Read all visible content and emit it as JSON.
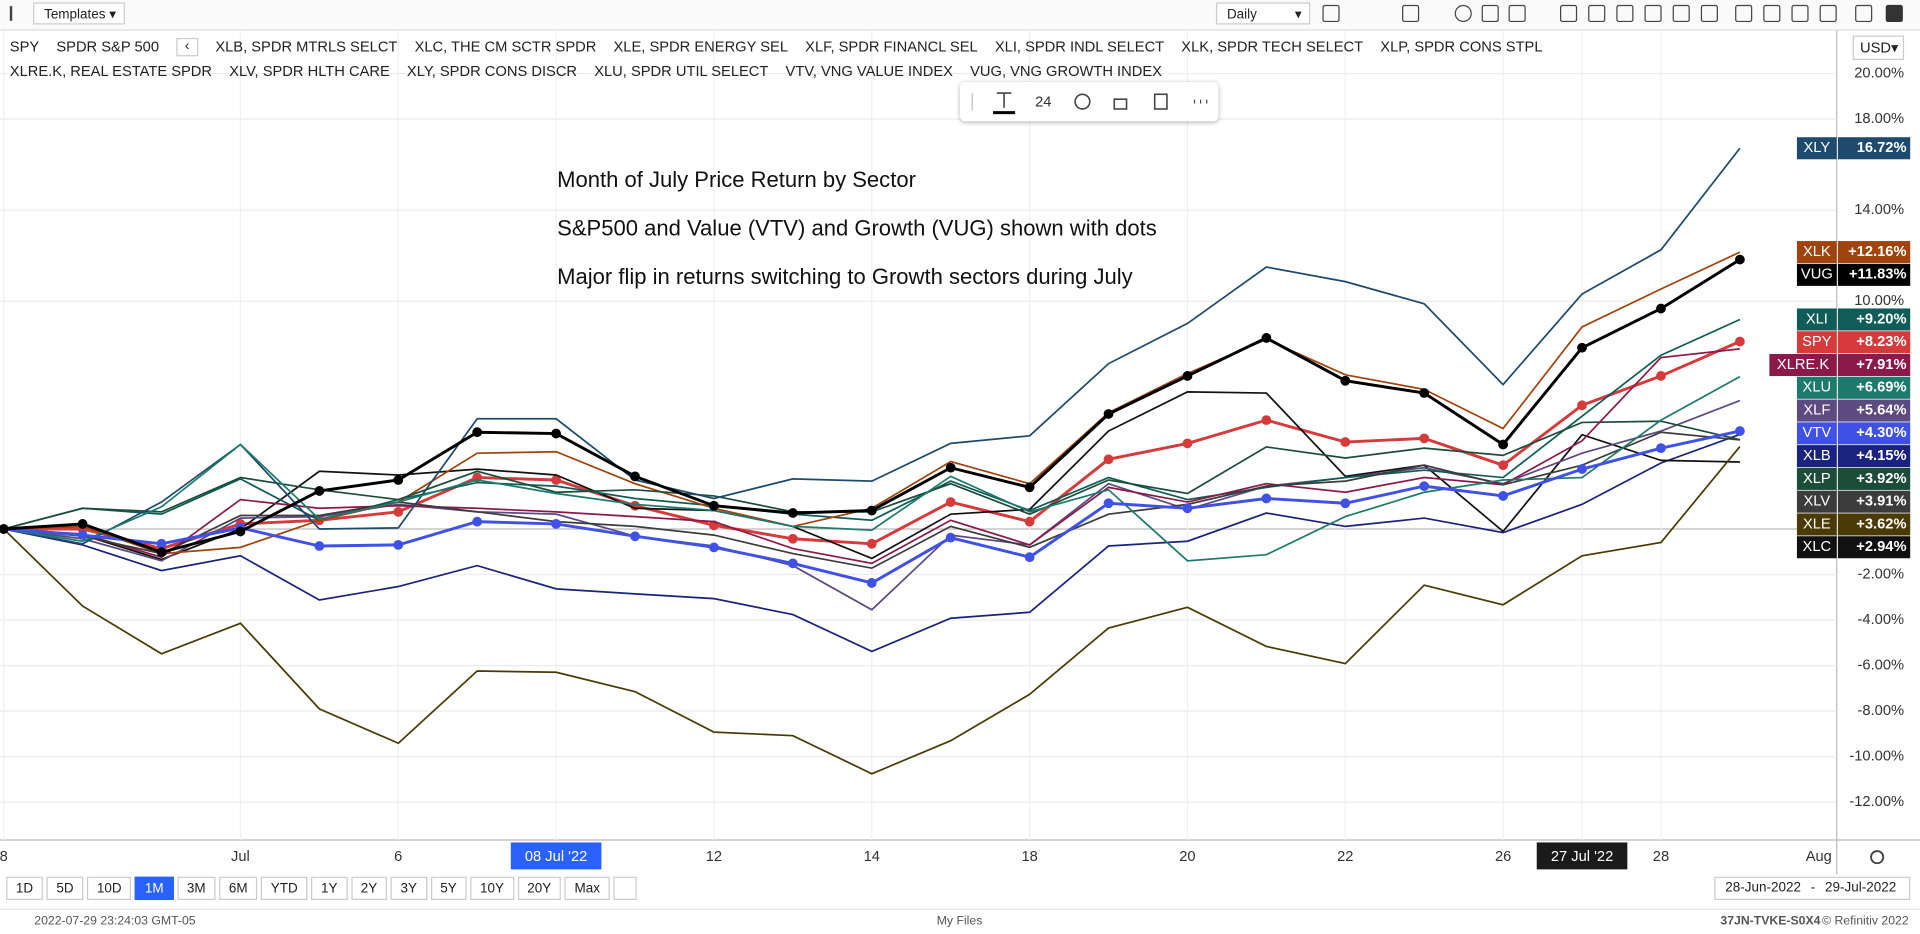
{
  "toolbar": {
    "templates": "Templates",
    "interval": "Daily",
    "currency": "USD"
  },
  "chart_data": {
    "type": "line",
    "categories": [
      "8",
      null,
      null,
      "Jul",
      null,
      "6",
      null,
      "08 Jul '22",
      null,
      "12",
      null,
      "14",
      null,
      "18",
      null,
      "20",
      null,
      "22",
      null,
      "26",
      "27 Jul '22",
      "28",
      null
    ],
    "x_end_label": "Aug",
    "x_highlight": [
      7,
      20
    ],
    "ylim": [
      -13.66,
      21.94
    ],
    "yticks": [
      {
        "value": 20,
        "label": "20.00%"
      },
      {
        "value": 18,
        "label": "18.00%"
      },
      {
        "value": 14,
        "label": "14.00%"
      },
      {
        "value": 10,
        "label": "10.00%"
      },
      {
        "value": -2,
        "label": "-2.00%"
      },
      {
        "value": -4,
        "label": "-4.00%"
      },
      {
        "value": -6,
        "label": "-6.00%"
      },
      {
        "value": -8,
        "label": "-8.00%"
      },
      {
        "value": -10,
        "label": "-10.00%"
      },
      {
        "value": -12,
        "label": "-12.00%"
      }
    ],
    "grid": true,
    "annotations": [
      "Month of July Price Return by Sector",
      "S&P500 and Value (VTV) and Growth (VUG) shown with dots",
      "Major flip in returns switching to Growth sectors during July"
    ],
    "series": [
      {
        "symbol": "SPY",
        "name": "SPDR S&P 500",
        "color": "#d63a3a",
        "markers": true,
        "values": [
          0,
          0,
          -0.86,
          0.22,
          0.38,
          0.75,
          2.26,
          2.15,
          1.02,
          0.16,
          -0.43,
          -0.65,
          1.18,
          0.32,
          3.06,
          3.76,
          4.78,
          3.82,
          3.98,
          2.8,
          5.43,
          6.72,
          8.23
        ],
        "value_labels": [
          null,
          null,
          null,
          null,
          null,
          null,
          null,
          null,
          null,
          null,
          null,
          null,
          null,
          null,
          null,
          null,
          null,
          null,
          null,
          null,
          null,
          null,
          "+8.23%"
        ]
      },
      {
        "symbol": "XLB",
        "name": "XLB, SPDR MTRLS SELCT",
        "color": "#1a237e",
        "markers": false,
        "values": [
          0,
          -0.7,
          -1.83,
          -1.18,
          -3.12,
          -2.53,
          -1.61,
          -2.63,
          -2.85,
          -3.06,
          -3.76,
          -5.38,
          -3.92,
          -3.66,
          -0.75,
          -0.54,
          0.7,
          0.11,
          0.48,
          -0.16,
          1.08,
          2.9,
          4.15
        ],
        "value_labels": [
          null,
          null,
          null,
          null,
          null,
          null,
          null,
          null,
          null,
          null,
          null,
          null,
          null,
          null,
          null,
          null,
          null,
          null,
          null,
          null,
          null,
          null,
          "+4.15%"
        ]
      },
      {
        "symbol": "XLC",
        "name": "XLC, THE CM SCTR SPDR",
        "color": "#111111",
        "markers": false,
        "values": [
          0,
          -0.27,
          -1.34,
          0,
          2.53,
          2.37,
          2.63,
          2.37,
          0.91,
          0.81,
          0.11,
          -1.29,
          0.65,
          0.86,
          4.3,
          6.02,
          5.97,
          2.31,
          2.8,
          -0.11,
          4.14,
          3.01,
          2.94
        ],
        "value_labels": [
          null,
          null,
          null,
          null,
          null,
          null,
          null,
          null,
          null,
          null,
          null,
          null,
          null,
          null,
          null,
          null,
          null,
          null,
          null,
          null,
          null,
          null,
          "+2.94%"
        ]
      },
      {
        "symbol": "XLE",
        "name": "XLE, SPDR ENERGY SEL",
        "color": "#4a3a05",
        "markers": false,
        "values": [
          0,
          -3.39,
          -5.48,
          -4.14,
          -7.9,
          -9.41,
          -6.24,
          -6.29,
          -7.15,
          -8.92,
          -9.08,
          -10.75,
          -9.3,
          -7.26,
          -4.35,
          -3.44,
          -5.16,
          -5.91,
          -2.47,
          -3.33,
          -1.18,
          -0.59,
          3.62
        ],
        "value_labels": [
          null,
          null,
          null,
          null,
          null,
          null,
          null,
          null,
          null,
          null,
          null,
          null,
          null,
          null,
          null,
          null,
          null,
          null,
          null,
          null,
          null,
          null,
          "+3.62%"
        ]
      },
      {
        "symbol": "XLF",
        "name": "XLF, SPDR FINANCL SEL",
        "color": "#5c4a80",
        "markers": false,
        "values": [
          0,
          -0.43,
          -1.4,
          0.48,
          0.54,
          1.08,
          0.75,
          0.65,
          -0.32,
          -0.75,
          -1.61,
          -3.55,
          -0.27,
          -0.7,
          1.99,
          0.86,
          1.88,
          2.26,
          2.69,
          1.99,
          3.33,
          4.3,
          5.64
        ],
        "value_labels": [
          null,
          null,
          null,
          null,
          null,
          null,
          null,
          null,
          null,
          null,
          null,
          null,
          null,
          null,
          null,
          null,
          null,
          null,
          null,
          null,
          null,
          null,
          "+5.64%"
        ]
      },
      {
        "symbol": "XLI",
        "name": "XLI, SPDR INDL SELECT",
        "color": "#0f5c58",
        "markers": false,
        "values": [
          0,
          0.91,
          0.65,
          2.2,
          0.38,
          1.29,
          2.04,
          1.88,
          1.34,
          1.02,
          0.65,
          0.38,
          2.1,
          0.81,
          2.26,
          1.29,
          1.83,
          2.26,
          2.58,
          2.26,
          4.95,
          7.63,
          9.2
        ],
        "value_labels": [
          null,
          null,
          null,
          null,
          null,
          null,
          null,
          null,
          null,
          null,
          null,
          null,
          null,
          null,
          null,
          null,
          null,
          null,
          null,
          null,
          null,
          null,
          "+9.20%"
        ]
      },
      {
        "symbol": "XLK",
        "name": "XLK, SPDR TECH SELECT",
        "color": "#a0430c",
        "markers": false,
        "values": [
          0,
          0.11,
          -1.08,
          -0.81,
          0.38,
          1.18,
          3.33,
          3.39,
          1.99,
          0.91,
          0.11,
          0.91,
          2.96,
          1.99,
          5.11,
          6.83,
          8.33,
          6.77,
          6.13,
          4.41,
          8.87,
          10.54,
          12.16
        ],
        "value_labels": [
          null,
          null,
          null,
          null,
          null,
          null,
          null,
          null,
          null,
          null,
          null,
          null,
          null,
          null,
          null,
          null,
          null,
          null,
          null,
          null,
          null,
          null,
          "+12.16%"
        ]
      },
      {
        "symbol": "XLP",
        "name": "XLP, SPDR CONS STPL",
        "color": "#1d4d3a",
        "markers": false,
        "values": [
          0,
          0.91,
          0.75,
          2.26,
          1.72,
          1.29,
          2.53,
          1.61,
          1.72,
          1.45,
          0.75,
          0.75,
          1.99,
          0.65,
          2.15,
          1.56,
          3.6,
          3.12,
          3.55,
          3.23,
          4.68,
          4.73,
          3.92
        ],
        "value_labels": [
          null,
          null,
          null,
          null,
          null,
          null,
          null,
          null,
          null,
          null,
          null,
          null,
          null,
          null,
          null,
          null,
          null,
          null,
          null,
          null,
          null,
          null,
          "+3.92%"
        ]
      },
      {
        "symbol": "XLRE.K",
        "name": "XLRE.K, REAL ESTATE SPDR",
        "color": "#8b1a4a",
        "markers": false,
        "values": [
          0,
          -0.22,
          -1.24,
          1.29,
          0.91,
          1.02,
          0.91,
          0.75,
          0.54,
          0.32,
          -0.86,
          -1.51,
          0.38,
          -0.7,
          1.83,
          1.18,
          1.99,
          1.61,
          2.26,
          1.94,
          3.87,
          7.53,
          7.91
        ],
        "value_labels": [
          null,
          null,
          null,
          null,
          null,
          null,
          null,
          null,
          null,
          null,
          null,
          null,
          null,
          null,
          null,
          null,
          null,
          null,
          null,
          null,
          null,
          null,
          "+7.91%"
        ]
      },
      {
        "symbol": "XLV",
        "name": "XLV, SPDR HLTH CARE",
        "color": "#3c3c3c",
        "markers": false,
        "values": [
          0,
          -0.32,
          -1.08,
          0.59,
          0.59,
          1.18,
          0.75,
          0.32,
          0.11,
          -0.27,
          -1.08,
          -1.72,
          0.11,
          -0.81,
          0.65,
          1.08,
          1.88,
          2.1,
          2.8,
          1.94,
          2.8,
          4.25,
          3.91
        ],
        "value_labels": [
          null,
          null,
          null,
          null,
          null,
          null,
          null,
          null,
          null,
          null,
          null,
          null,
          null,
          null,
          null,
          null,
          null,
          null,
          null,
          null,
          null,
          null,
          "+3.91%"
        ]
      },
      {
        "symbol": "XLY",
        "name": "XLY, SPDR CONS DISCR",
        "color": "#1e4a6b",
        "markers": false,
        "values": [
          0,
          -0.65,
          1.18,
          3.71,
          0,
          0.05,
          4.84,
          4.84,
          2.15,
          1.34,
          2.2,
          2.1,
          3.76,
          4.09,
          7.26,
          9.03,
          11.5,
          10.86,
          9.89,
          6.34,
          10.32,
          12.26,
          16.72
        ],
        "value_labels": [
          null,
          null,
          null,
          null,
          null,
          null,
          null,
          null,
          null,
          null,
          null,
          null,
          null,
          null,
          null,
          null,
          null,
          null,
          null,
          null,
          null,
          null,
          "16.72%"
        ]
      },
      {
        "symbol": "XLU",
        "name": "XLU, SPDR UTIL SELECT",
        "color": "#1f7a6e",
        "markers": false,
        "values": [
          0,
          -0.54,
          0.97,
          3.71,
          0.43,
          1.18,
          2.15,
          1.56,
          1.08,
          0.81,
          0.11,
          -0.05,
          2.31,
          0.75,
          1.72,
          -1.4,
          -1.13,
          0.54,
          1.61,
          2.15,
          2.26,
          4.78,
          6.69
        ],
        "value_labels": [
          null,
          null,
          null,
          null,
          null,
          null,
          null,
          null,
          null,
          null,
          null,
          null,
          null,
          null,
          null,
          null,
          null,
          null,
          null,
          null,
          null,
          null,
          "+6.69%"
        ]
      },
      {
        "symbol": "VTV",
        "name": "VTV, VNG VALUE INDEX",
        "color": "#3f51e6",
        "markers": true,
        "values": [
          0,
          -0.27,
          -0.65,
          0.05,
          -0.75,
          -0.7,
          0.32,
          0.22,
          -0.32,
          -0.81,
          -1.51,
          -2.37,
          -0.38,
          -1.24,
          1.13,
          0.91,
          1.34,
          1.13,
          1.88,
          1.45,
          2.63,
          3.55,
          4.3
        ],
        "value_labels": [
          null,
          null,
          null,
          null,
          null,
          null,
          null,
          null,
          null,
          null,
          null,
          null,
          null,
          null,
          null,
          null,
          null,
          null,
          null,
          null,
          null,
          null,
          "+4.30%"
        ]
      },
      {
        "symbol": "VUG",
        "name": "VUG, VNG GROWTH INDEX",
        "color": "#000000",
        "markers": true,
        "values": [
          0,
          0.22,
          -1.02,
          -0.11,
          1.67,
          2.15,
          4.25,
          4.19,
          2.31,
          1.02,
          0.7,
          0.81,
          2.69,
          1.83,
          5.05,
          6.72,
          8.39,
          6.51,
          5.97,
          3.71,
          7.96,
          9.68,
          11.83
        ],
        "value_labels": [
          null,
          null,
          null,
          null,
          null,
          null,
          null,
          null,
          null,
          null,
          null,
          null,
          null,
          null,
          null,
          null,
          null,
          null,
          null,
          null,
          null,
          null,
          "+11.83%"
        ]
      }
    ]
  },
  "text_tool": {
    "font_size": "24"
  },
  "periods": {
    "items": [
      "1D",
      "5D",
      "10D",
      "1M",
      "3M",
      "6M",
      "YTD",
      "1Y",
      "2Y",
      "3Y",
      "5Y",
      "10Y",
      "20Y",
      "Max"
    ],
    "active": 3
  },
  "date_range": {
    "from": "28-Jun-2022",
    "separator": "-",
    "to": "29-Jul-2022"
  },
  "footer": {
    "timestamp": "2022-07-29 23:24:03 GMT-05",
    "files": "My Files",
    "code": "37JN-TVKE-S0X4",
    "copyright": "© Refinitiv 2022"
  }
}
